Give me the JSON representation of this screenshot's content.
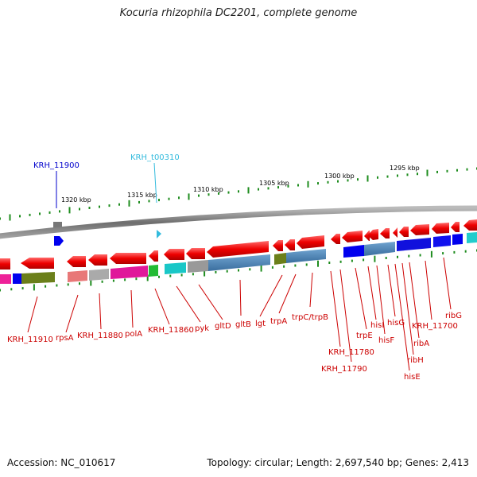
{
  "title": "Kocuria rhizophila DC2201, complete genome",
  "accession": "Accession: NC_010617",
  "summary": "Topology: circular; Length: 2,697,540 bp; Genes: 2,413",
  "colors": {
    "tick": "#1e8c1e",
    "backbone": "#808080",
    "gene_label": "#cc0000",
    "highlight_blue": "#0000cc",
    "highlight_cyan": "#33bbdd"
  },
  "scale_labels": [
    {
      "text": "1320 kbp"
    },
    {
      "text": "1315 kbp"
    },
    {
      "text": "1310 kbp"
    },
    {
      "text": "1305 kbp"
    },
    {
      "text": "1300 kbp"
    },
    {
      "text": "1295 kbp"
    }
  ],
  "top_labels": [
    {
      "text": "KRH_11900",
      "color": "#0000cc"
    },
    {
      "text": "KRH_t00310",
      "color": "#33bbdd"
    }
  ],
  "gene_labels": [
    {
      "text": "KRH_11910"
    },
    {
      "text": "rpsA"
    },
    {
      "text": "KRH_11880"
    },
    {
      "text": "polA"
    },
    {
      "text": "KRH_11860"
    },
    {
      "text": "pyk"
    },
    {
      "text": "gltD"
    },
    {
      "text": "gltB"
    },
    {
      "text": "lgt"
    },
    {
      "text": "trpA"
    },
    {
      "text": "trpC/trpB"
    },
    {
      "text": "KRH_11780"
    },
    {
      "text": "KRH_11790"
    },
    {
      "text": "trpE"
    },
    {
      "text": "hisI"
    },
    {
      "text": "hisF"
    },
    {
      "text": "hisG"
    },
    {
      "text": "hisE"
    },
    {
      "text": "ribH"
    },
    {
      "text": "ribA"
    },
    {
      "text": "KRH_11700"
    },
    {
      "text": "ribG"
    }
  ]
}
